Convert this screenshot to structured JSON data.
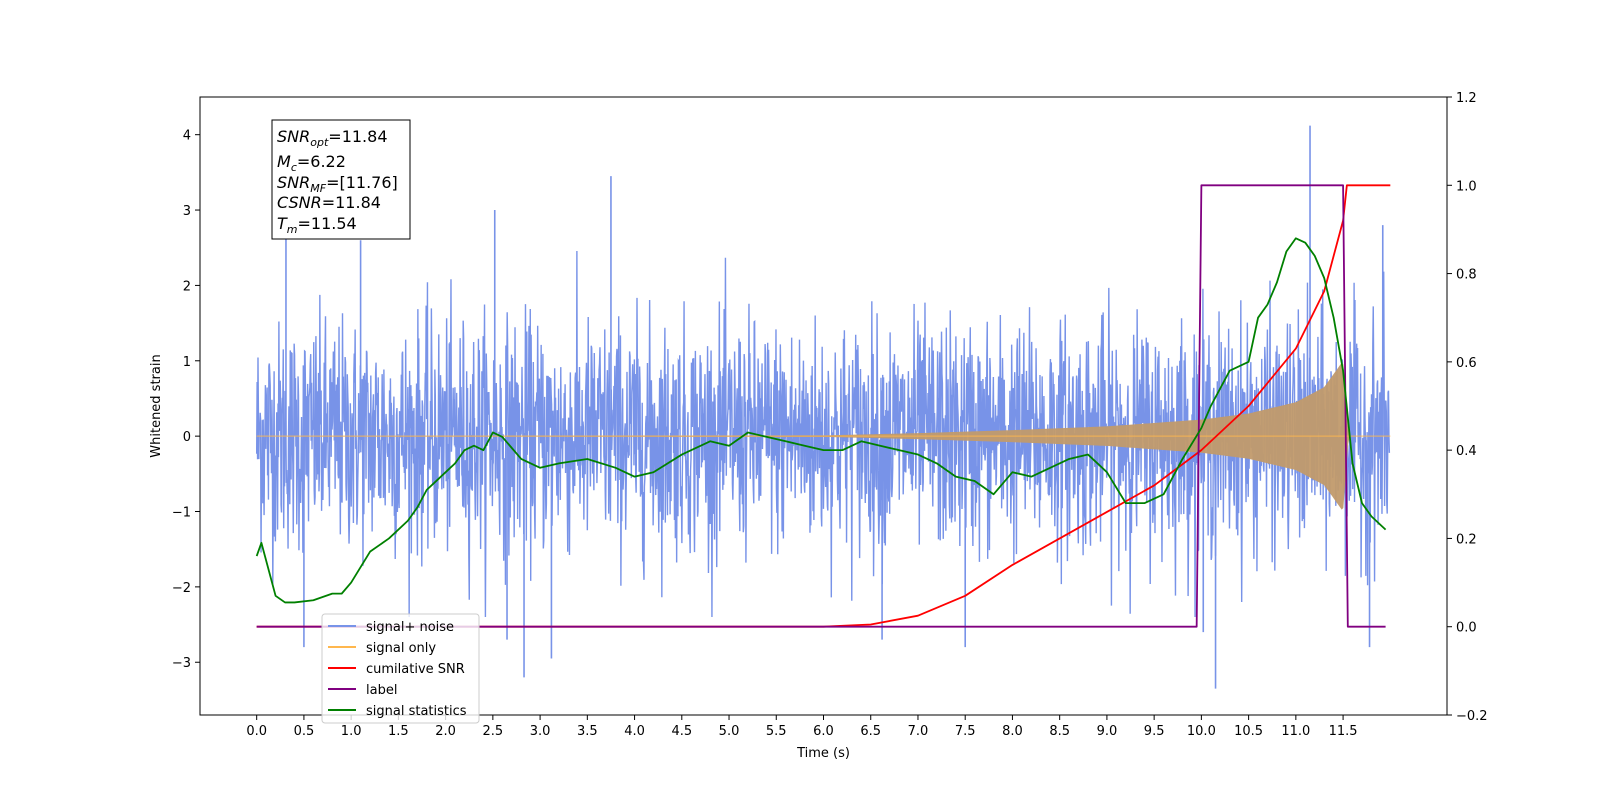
{
  "chart_data": {
    "type": "line",
    "xlabel": "Time (s)",
    "ylabel": "Whitened strain",
    "xlim": [
      -0.6,
      12.6
    ],
    "ylim": [
      -3.7,
      4.5
    ],
    "y2lim": [
      -0.2,
      1.2
    ],
    "x_ticks": [
      "0.0",
      "0.5",
      "1.0",
      "1.5",
      "2.0",
      "2.5",
      "3.0",
      "3.5",
      "4.0",
      "4.5",
      "5.0",
      "5.5",
      "6.0",
      "6.5",
      "7.0",
      "7.5",
      "8.0",
      "8.5",
      "9.0",
      "9.5",
      "10.0",
      "10.5",
      "11.0",
      "11.5"
    ],
    "y_ticks": [
      "−3",
      "−2",
      "−1",
      "0",
      "1",
      "2",
      "3",
      "4"
    ],
    "y2_ticks": [
      "−0.2",
      "0.0",
      "0.2",
      "0.4",
      "0.6",
      "0.8",
      "1.0",
      "1.2"
    ],
    "legend_position": "lower-left",
    "annotation": {
      "lines": [
        {
          "var": "SNR",
          "sub": "opt",
          "value": "=11.84"
        },
        {
          "var": "M",
          "sub": "c",
          "value": "=6.22"
        },
        {
          "var": "SNR",
          "sub": "MF",
          "value": "=[11.76]"
        },
        {
          "var": "CSNR",
          "sub": "",
          "value": "=11.84"
        },
        {
          "var": "T",
          "sub": "m",
          "value": "=11.54"
        }
      ]
    },
    "series": [
      {
        "name": "signal+ noise",
        "color": "#7893e8",
        "axis": "left",
        "kind": "noise",
        "x_range": [
          0.0,
          11.99
        ],
        "amplitude_std": 0.75,
        "peaks": [
          [
            0.31,
            2.7
          ],
          [
            0.5,
            -2.8
          ],
          [
            1.1,
            2.6
          ],
          [
            2.65,
            -2.7
          ],
          [
            2.83,
            -3.2
          ],
          [
            3.12,
            -2.95
          ],
          [
            3.75,
            3.45
          ],
          [
            2.52,
            3.0
          ],
          [
            6.62,
            -2.7
          ],
          [
            7.5,
            -2.8
          ],
          [
            10.15,
            -3.35
          ],
          [
            10.02,
            -2.6
          ],
          [
            11.15,
            4.12
          ],
          [
            11.78,
            -2.8
          ],
          [
            11.92,
            2.8
          ]
        ]
      },
      {
        "name": "signal only",
        "color": "#ffb74d",
        "axis": "left",
        "kind": "chirp",
        "x_range": [
          0.0,
          12.0
        ],
        "t_merge": 11.54,
        "envelope": [
          [
            0.0,
            0.0
          ],
          [
            6.0,
            0.01
          ],
          [
            7.0,
            0.04
          ],
          [
            8.0,
            0.08
          ],
          [
            9.0,
            0.13
          ],
          [
            10.0,
            0.22
          ],
          [
            10.5,
            0.3
          ],
          [
            11.0,
            0.45
          ],
          [
            11.3,
            0.65
          ],
          [
            11.5,
            1.0
          ],
          [
            11.56,
            0.0
          ],
          [
            12.0,
            0.0
          ]
        ]
      },
      {
        "name": "cumilative SNR",
        "color": "#ff0000",
        "axis": "right",
        "x": [
          0.0,
          6.0,
          6.5,
          7.0,
          7.5,
          8.0,
          8.5,
          9.0,
          9.5,
          10.0,
          10.5,
          11.0,
          11.3,
          11.5,
          11.54,
          12.0
        ],
        "y": [
          0.0,
          0.0,
          0.005,
          0.025,
          0.07,
          0.14,
          0.2,
          0.26,
          0.32,
          0.4,
          0.5,
          0.63,
          0.76,
          0.92,
          1.0,
          1.0
        ]
      },
      {
        "name": "label",
        "color": "#800080",
        "axis": "right",
        "x": [
          0.0,
          9.95,
          10.0,
          11.5,
          11.55,
          11.95
        ],
        "y": [
          0.0,
          0.0,
          1.0,
          1.0,
          0.0,
          0.0
        ]
      },
      {
        "name": "signal statistics",
        "color": "#008000",
        "axis": "right",
        "x": [
          0.0,
          0.05,
          0.1,
          0.2,
          0.3,
          0.4,
          0.6,
          0.8,
          0.9,
          1.0,
          1.2,
          1.4,
          1.6,
          1.7,
          1.8,
          1.9,
          2.0,
          2.1,
          2.2,
          2.3,
          2.4,
          2.5,
          2.6,
          2.8,
          3.0,
          3.2,
          3.5,
          3.8,
          4.0,
          4.2,
          4.5,
          4.8,
          5.0,
          5.2,
          5.4,
          5.6,
          5.8,
          6.0,
          6.2,
          6.4,
          6.6,
          6.8,
          7.0,
          7.2,
          7.4,
          7.6,
          7.8,
          8.0,
          8.2,
          8.4,
          8.6,
          8.8,
          9.0,
          9.2,
          9.4,
          9.6,
          9.8,
          10.0,
          10.1,
          10.2,
          10.3,
          10.5,
          10.6,
          10.7,
          10.8,
          10.9,
          11.0,
          11.1,
          11.2,
          11.3,
          11.4,
          11.5,
          11.6,
          11.7,
          11.8,
          11.95
        ],
        "y": [
          0.16,
          0.19,
          0.15,
          0.07,
          0.055,
          0.055,
          0.06,
          0.075,
          0.075,
          0.1,
          0.17,
          0.2,
          0.24,
          0.27,
          0.31,
          0.33,
          0.35,
          0.37,
          0.4,
          0.41,
          0.4,
          0.44,
          0.43,
          0.38,
          0.36,
          0.37,
          0.38,
          0.36,
          0.34,
          0.35,
          0.39,
          0.42,
          0.41,
          0.44,
          0.43,
          0.42,
          0.41,
          0.4,
          0.4,
          0.42,
          0.41,
          0.4,
          0.39,
          0.37,
          0.34,
          0.33,
          0.3,
          0.35,
          0.34,
          0.36,
          0.38,
          0.39,
          0.35,
          0.28,
          0.28,
          0.3,
          0.38,
          0.45,
          0.5,
          0.54,
          0.58,
          0.6,
          0.7,
          0.73,
          0.78,
          0.85,
          0.88,
          0.87,
          0.84,
          0.79,
          0.7,
          0.58,
          0.37,
          0.28,
          0.25,
          0.22
        ]
      }
    ],
    "legend_entries": [
      "signal+ noise",
      "signal only",
      "cumilative SNR",
      "label",
      "signal statistics"
    ]
  }
}
